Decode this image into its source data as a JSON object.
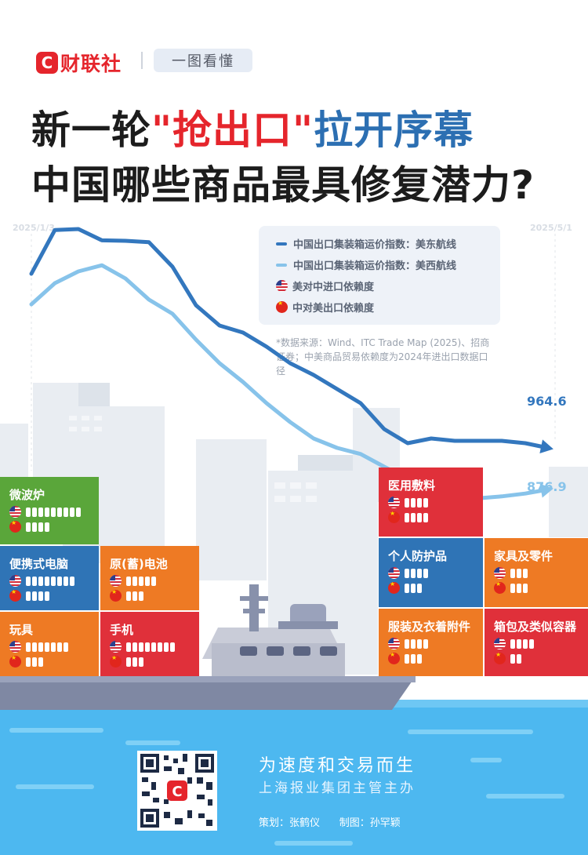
{
  "header": {
    "logo_text": "财联社",
    "tag": "一图看懂"
  },
  "title": {
    "line1_prefix": "新一轮",
    "line1_highlight": "\"抢出口\"",
    "line1_suffix": "拉开序幕",
    "line2": "中国哪些商品最具修复潜力?"
  },
  "legend": {
    "east": "中国出口集装箱运价指数：美东航线",
    "west": "中国出口集装箱运价指数：美西航线",
    "us_dependency": "美对中进口依赖度",
    "cn_dependency": "中对美出口依赖度"
  },
  "source_note": "*数据来源：Wind、ITC Trade Map (2025)、招商证券；中美商品贸易依赖度为2024年进出口数据口径",
  "colors": {
    "east_line": "#3377be",
    "west_line": "#87c3ea",
    "accent_red": "#e5252c",
    "accent_blue": "#2c6fb2",
    "sea": "#4db8f0"
  },
  "chart_data": {
    "type": "line",
    "x_start_label": "2025/1/3",
    "x_end_label": "2025/5/1",
    "series": [
      {
        "name": "中国出口集装箱运价指数：美东航线",
        "values": [
          1335,
          1428,
          1430,
          1406,
          1405,
          1402,
          1350,
          1268,
          1225,
          1210,
          1180,
          1145,
          1120,
          1090,
          1060,
          1005,
          975,
          985,
          980,
          980,
          980,
          975,
          964.6
        ],
        "end_label": "964.6"
      },
      {
        "name": "中国出口集装箱运价指数：美西航线",
        "values": [
          1270,
          1315,
          1340,
          1353,
          1325,
          1280,
          1250,
          1195,
          1145,
          1105,
          1060,
          1020,
          985,
          965,
          952,
          925,
          900,
          868,
          858,
          858,
          862,
          868,
          876.9
        ],
        "end_label": "876.9"
      }
    ],
    "y_range": [
      800,
      1500
    ],
    "grid": false,
    "legend_position": "top-right"
  },
  "containers": [
    {
      "label": "微波炉",
      "color": "#5aa63a",
      "us": 9,
      "cn": 4
    },
    {
      "label": "便携式电脑",
      "color": "#2f74b6",
      "us": 8,
      "cn": 4
    },
    {
      "label": "原(蓄)电池",
      "color": "#ee7a24",
      "us": 5,
      "cn": 3
    },
    {
      "label": "玩具",
      "color": "#ee7a24",
      "us": 7,
      "cn": 3
    },
    {
      "label": "手机",
      "color": "#e0303a",
      "us": 8,
      "cn": 3
    },
    {
      "label": "医用敷料",
      "color": "#e0303a",
      "us": 4,
      "cn": 4
    },
    {
      "label": "个人防护品",
      "color": "#2f74b6",
      "us": 4,
      "cn": 3
    },
    {
      "label": "家具及零件",
      "color": "#ee7a24",
      "us": 3,
      "cn": 3
    },
    {
      "label": "服装及衣着附件",
      "color": "#ee7a24",
      "us": 4,
      "cn": 3
    },
    {
      "label": "箱包及类似容器",
      "color": "#e0303a",
      "us": 4,
      "cn": 2
    }
  ],
  "footer": {
    "slogan1": "为速度和交易而生",
    "slogan2": "上海报业集团主管主办",
    "credits": "策划：张鹤仪      制图：孙罕颖"
  }
}
